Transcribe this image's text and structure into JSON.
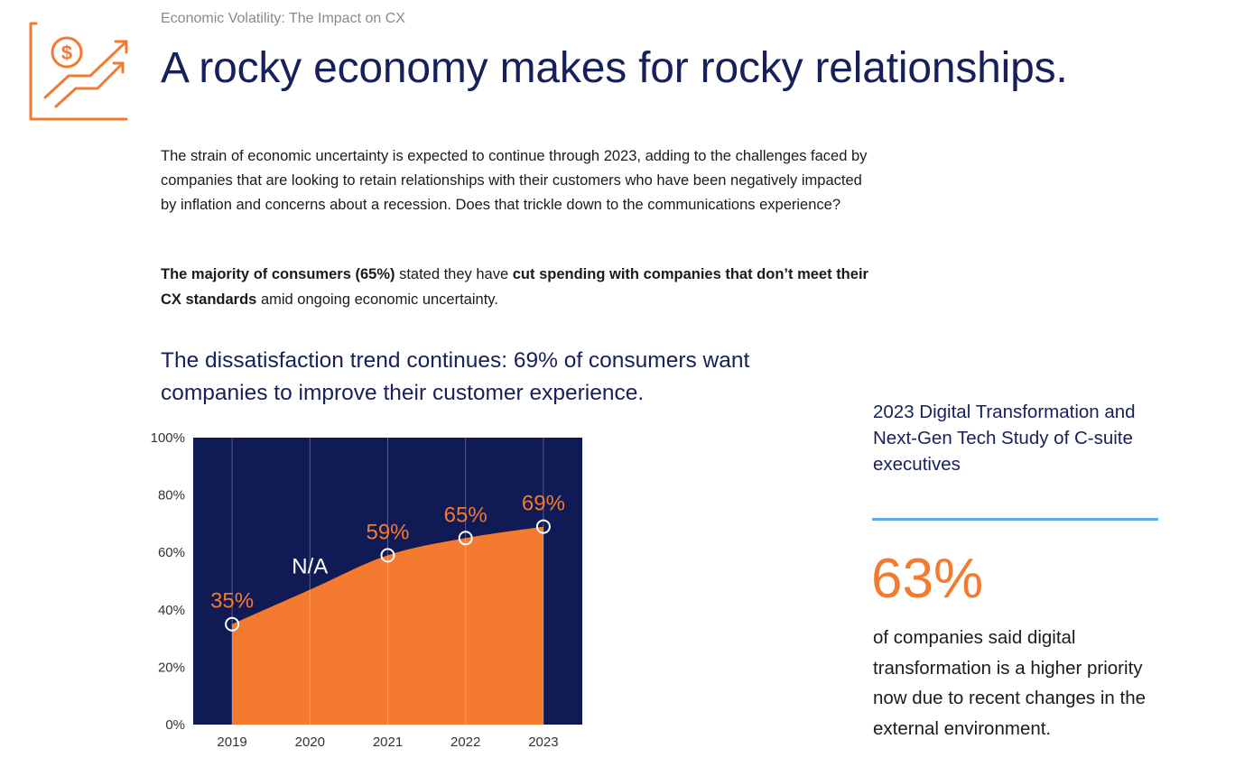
{
  "header": {
    "eyebrow": "Economic Volatility: The Impact on CX",
    "title": "A rocky economy makes for rocky relationships.",
    "icon": "dollar-growth-chart-icon"
  },
  "body": {
    "intro": "The strain of economic uncertainty is expected to continue through 2023, adding to the challenges faced by companies that are looking to retain relationships with their customers who have been negatively impacted by inflation and concerns about a recession. Does that trickle down to the communications experience?",
    "highlight": {
      "bold1": "The majority of consumers (65%)",
      "text1": " stated they have ",
      "bold2": "cut spending with companies that don’t meet their CX standards",
      "text2": " amid ongoing economic uncertainty."
    }
  },
  "chart_section": {
    "title": "The dissatisfaction trend continues: 69% of consumers want companies to improve their customer experience."
  },
  "chart_data": {
    "type": "area",
    "x": [
      "2019",
      "2020",
      "2021",
      "2022",
      "2023"
    ],
    "values": [
      35,
      null,
      59,
      65,
      69
    ],
    "data_labels": [
      "35%",
      "N/A",
      "59%",
      "65%",
      "69%"
    ],
    "ylim": [
      0,
      100
    ],
    "yticks": [
      0,
      20,
      40,
      60,
      80,
      100
    ],
    "ytick_labels": [
      "0%",
      "20%",
      "40%",
      "60%",
      "80%",
      "100%"
    ],
    "title": "",
    "xlabel": "",
    "ylabel": "",
    "colors": {
      "background": "#101a55",
      "area": "#f47a30",
      "marker": "#ffffff",
      "label": "#f47a30",
      "na_label": "#ffffff"
    }
  },
  "sidebar": {
    "study_title": "2023 Digital Transformation and Next-Gen Tech Study of C-suite executives",
    "stat_value": "63%",
    "stat_description": "of companies said digital transformation is a higher priority now due to recent changes in the external environment.",
    "rule_color": "#5aafe6",
    "accent_color": "#f47a30"
  }
}
